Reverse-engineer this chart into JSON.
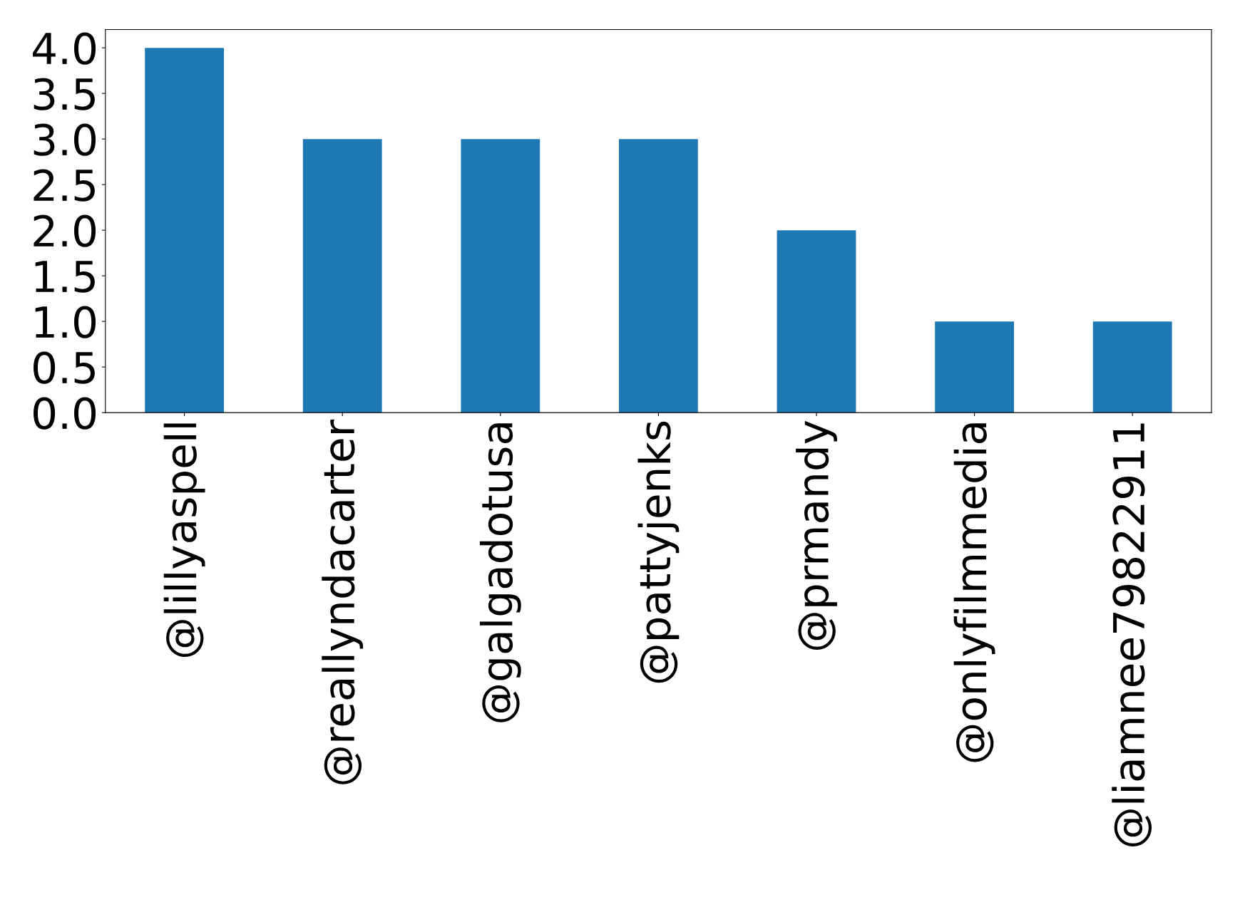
{
  "chart_data": {
    "type": "bar",
    "categories": [
      "@lillyaspell",
      "@reallyndacarter",
      "@galgadotusa",
      "@pattyjenks",
      "@prmandy",
      "@onlyfilmmedia",
      "@liamnee79822911"
    ],
    "values": [
      4,
      3,
      3,
      3,
      2,
      1,
      1
    ],
    "color": "#1f77b4",
    "ylim": [
      0,
      4.2
    ],
    "yticks": [
      {
        "value": 0,
        "label": "0.0"
      },
      {
        "value": 0.5,
        "label": "0.5"
      },
      {
        "value": 1,
        "label": "1.0"
      },
      {
        "value": 1.5,
        "label": "1.5"
      },
      {
        "value": 2,
        "label": "2.0"
      },
      {
        "value": 2.5,
        "label": "2.5"
      },
      {
        "value": 3,
        "label": "3.0"
      },
      {
        "value": 3.5,
        "label": "3.5"
      },
      {
        "value": 4,
        "label": "4.0"
      }
    ],
    "grid": false
  }
}
